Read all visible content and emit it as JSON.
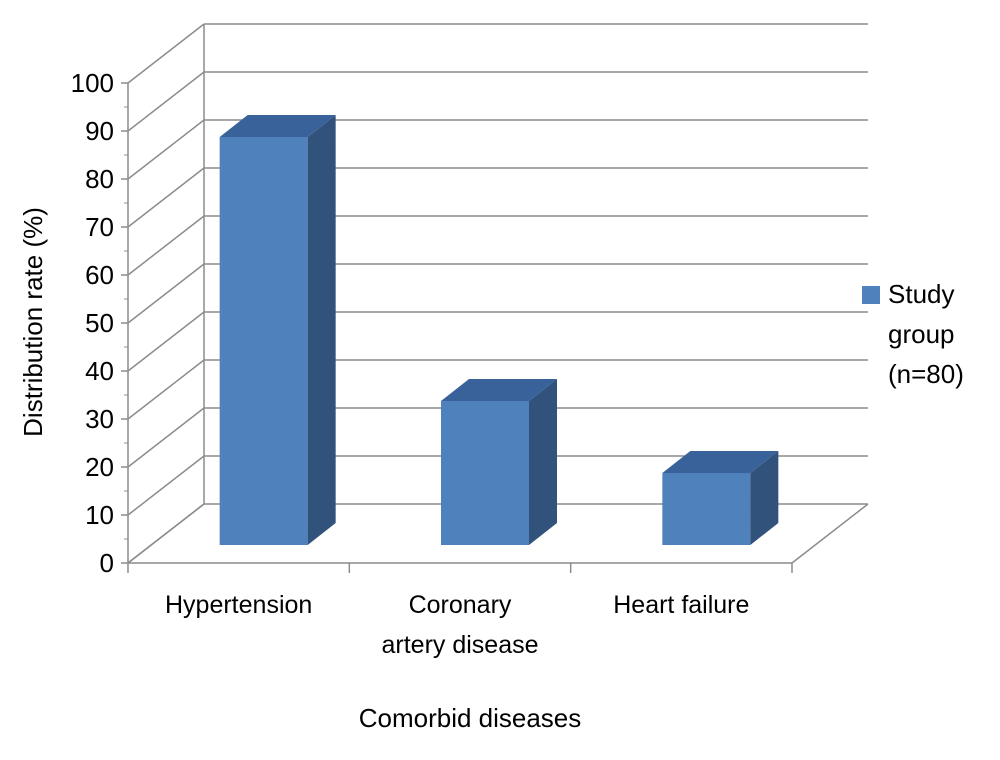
{
  "chart_data": {
    "type": "bar",
    "categories": [
      [
        "Hypertension"
      ],
      [
        "Coronary",
        "artery disease"
      ],
      [
        "Heart failure"
      ]
    ],
    "series": [
      {
        "name": [
          "Study",
          "group",
          "(n=80)"
        ],
        "values": [
          85,
          30,
          15
        ]
      }
    ],
    "xlabel": "Comorbid diseases",
    "ylabel": "Distribution rate (%)",
    "ylim": [
      0,
      100
    ],
    "ytick_step": 10,
    "yticks": [
      "0",
      "10",
      "20",
      "30",
      "40",
      "50",
      "60",
      "70",
      "80",
      "90",
      "100"
    ],
    "grid": true,
    "legend_position": "right",
    "colors": {
      "bar_front": "#4f81bd",
      "bar_side": "#31527b",
      "bar_top": "#3a629a",
      "grid": "#8c8c8c",
      "axis": "#8c8c8c"
    }
  }
}
